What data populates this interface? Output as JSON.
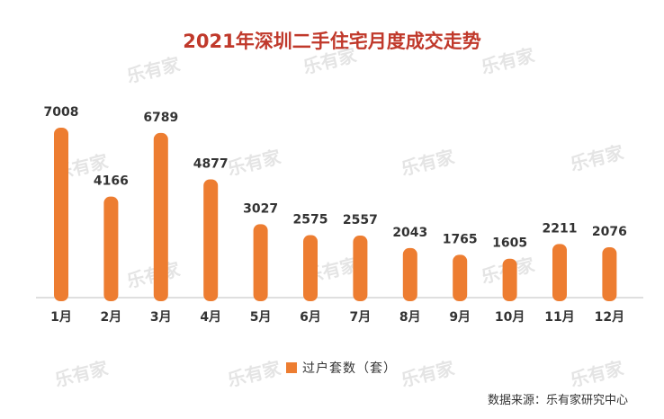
{
  "chart_data": {
    "type": "bar",
    "title": "2021年深圳二手住宅月度成交走势",
    "categories": [
      "1月",
      "2月",
      "3月",
      "4月",
      "5月",
      "6月",
      "7月",
      "8月",
      "9月",
      "10月",
      "11月",
      "12月"
    ],
    "series": [
      {
        "name": "过户套数（套）",
        "values": [
          7008,
          4166,
          6789,
          4877,
          3027,
          2575,
          2557,
          2043,
          1765,
          1605,
          2211,
          2076
        ],
        "color": "#ed7d31"
      }
    ],
    "ylim": [
      0,
      7008
    ],
    "grid": false,
    "legend_position": "bottom",
    "title_color": "#c0392b"
  },
  "watermark": "乐有家",
  "source": "数据来源：乐有家研究中心"
}
